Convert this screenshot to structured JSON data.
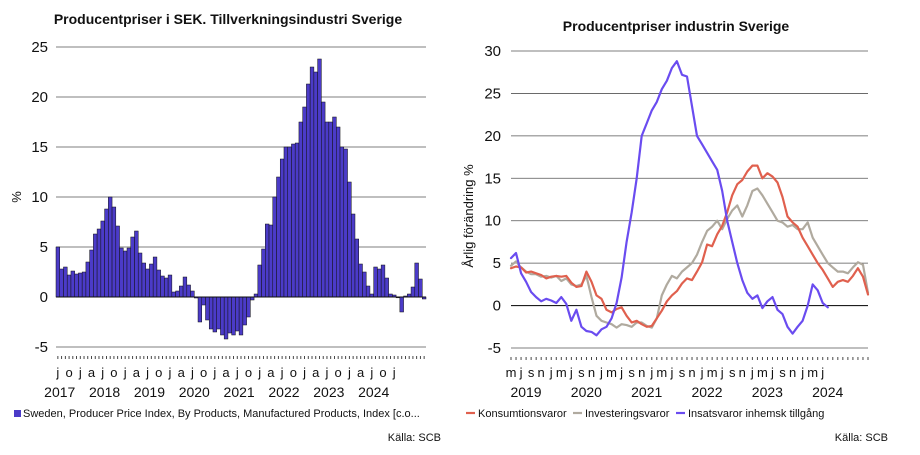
{
  "colors": {
    "bar": "#4B3BC8",
    "bar_outline": "#111111",
    "konsumtion": "#E0604E",
    "investering": "#B0AA9F",
    "insats": "#6A4CF0",
    "grid": "#555555"
  },
  "chart_data": [
    {
      "type": "bar",
      "title": "Producentpriser i SEK. Tillverkningsindustri Sverige",
      "ylabel": "%",
      "ylim": [
        -6,
        25
      ],
      "yticks": [
        25,
        20,
        15,
        10,
        5,
        0,
        -5
      ],
      "grid": true,
      "x_start": "2017-01",
      "x_end": "2024-07",
      "month_labels": [
        "j",
        "o",
        "j",
        "a",
        "j",
        "o",
        "j",
        "a",
        "j",
        "o",
        "j",
        "a",
        "j",
        "o",
        "j",
        "a",
        "j",
        "o",
        "j",
        "a",
        "j",
        "o",
        "j",
        "a",
        "j",
        "o",
        "j",
        "a",
        "j",
        "o",
        "j"
      ],
      "year_labels": [
        "2017",
        "2018",
        "2019",
        "2020",
        "2021",
        "2022",
        "2023",
        "2024"
      ],
      "series": [
        {
          "name": "Sweden, Producer Price Index, By Products, Manufactured Products, Index [c.o...",
          "values": [
            5.0,
            2.8,
            3.0,
            2.2,
            2.6,
            2.3,
            2.4,
            2.5,
            3.5,
            4.7,
            6.3,
            6.8,
            7.6,
            8.8,
            10.0,
            9.0,
            7.1,
            4.9,
            4.6,
            4.9,
            6.0,
            6.6,
            4.4,
            3.4,
            2.8,
            3.3,
            4.0,
            2.7,
            2.1,
            1.9,
            2.2,
            0.5,
            0.6,
            1.1,
            2.0,
            1.2,
            0.6,
            -0.1,
            -2.5,
            -0.8,
            -2.3,
            -3.2,
            -3.5,
            -3.2,
            -3.8,
            -4.2,
            -3.6,
            -3.8,
            -3.4,
            -3.8,
            -2.8,
            -2.0,
            -0.3,
            0.3,
            3.2,
            4.8,
            7.3,
            7.2,
            10.0,
            12.0,
            13.8,
            15.0,
            15.0,
            15.3,
            15.4,
            17.5,
            19.0,
            21.3,
            23.0,
            22.5,
            23.8,
            19.5,
            17.5,
            17.5,
            18.0,
            17.0,
            15.0,
            14.8,
            11.5,
            8.3,
            5.8,
            3.3,
            2.5,
            1.1,
            0.3,
            3.0,
            2.8,
            3.2,
            1.9,
            0.3,
            0.2,
            0.0,
            -1.5,
            0.1,
            0.3,
            1.0,
            3.4,
            1.8,
            -0.2
          ]
        }
      ]
    },
    {
      "type": "line",
      "title": "Producentpriser industrin Sverige",
      "ylabel": "Årlig förändring %",
      "ylim": [
        -5,
        30
      ],
      "yticks": [
        30,
        25,
        20,
        15,
        10,
        5,
        0,
        -5
      ],
      "grid": true,
      "legend_position": "bottom",
      "x_start": "2019-05",
      "x_end": "2024-07",
      "month_labels": [
        "m",
        "j",
        "s",
        "n",
        "j",
        "m",
        "j",
        "s",
        "n",
        "j",
        "m",
        "j",
        "s",
        "n",
        "j",
        "m",
        "j",
        "s",
        "n",
        "j",
        "m",
        "j",
        "s",
        "n",
        "j",
        "m",
        "j",
        "s",
        "n",
        "j",
        "m",
        "j"
      ],
      "year_labels": [
        "2019",
        "2020",
        "2021",
        "2022",
        "2023",
        "2024"
      ],
      "series": [
        {
          "name": "Konsumtionsvaror",
          "values": [
            4.4,
            4.6,
            4.5,
            3.9,
            4.0,
            3.8,
            3.6,
            3.2,
            3.4,
            3.5,
            3.4,
            3.5,
            2.7,
            2.2,
            2.3,
            4.0,
            2.8,
            1.2,
            0.8,
            -0.5,
            -0.8,
            -0.4,
            -0.2,
            -1.2,
            -2.0,
            -1.8,
            -2.2,
            -2.5,
            -2.4,
            -1.5,
            -0.6,
            0.5,
            1.2,
            1.7,
            2.6,
            3.2,
            3.0,
            4.0,
            5.1,
            7.2,
            7.0,
            8.4,
            9.4,
            11.0,
            13.0,
            14.3,
            14.8,
            15.8,
            16.5,
            16.5,
            15.0,
            15.6,
            15.2,
            14.5,
            12.8,
            10.5,
            9.8,
            9.3,
            8.0,
            7.0,
            6.0,
            5.0,
            4.2,
            3.2,
            2.2,
            2.8,
            3.0,
            2.8,
            3.5,
            4.4,
            3.4,
            1.3
          ]
        },
        {
          "name": "Investeringsvaror",
          "values": [
            4.7,
            5.2,
            4.5,
            4.0,
            3.7,
            3.7,
            3.4,
            3.5,
            3.3,
            3.5,
            2.9,
            3.2,
            2.5,
            2.3,
            2.5,
            3.5,
            1.0,
            -1.2,
            -1.8,
            -2.0,
            -2.2,
            -2.6,
            -2.2,
            -2.3,
            -2.5,
            -2.0,
            -2.0,
            -2.4,
            -2.6,
            -1.5,
            1.2,
            2.5,
            3.5,
            3.2,
            4.0,
            4.5,
            5.0,
            6.0,
            7.5,
            8.8,
            9.3,
            10.0,
            9.0,
            10.2,
            11.2,
            11.8,
            10.5,
            11.8,
            13.5,
            13.8,
            13.0,
            12.0,
            11.0,
            10.0,
            9.8,
            9.3,
            9.5,
            9.0,
            9.0,
            9.8,
            8.0,
            7.0,
            6.0,
            5.0,
            4.5,
            4.0,
            4.0,
            3.8,
            4.5,
            5.1,
            4.8,
            1.5
          ]
        },
        {
          "name": "Insatsvaror inhemsk tillgång",
          "values": [
            5.6,
            6.2,
            3.8,
            2.8,
            1.6,
            1.0,
            0.5,
            0.8,
            0.6,
            0.3,
            1.0,
            0.2,
            -1.8,
            -0.5,
            -2.5,
            -3.0,
            -3.1,
            -3.5,
            -2.8,
            -2.5,
            -1.5,
            0.3,
            3.3,
            7.5,
            11.0,
            15.0,
            20.0,
            21.5,
            23.0,
            24.0,
            25.5,
            26.5,
            28.0,
            28.8,
            27.2,
            27.0,
            23.5,
            20.0,
            19.0,
            18.0,
            17.0,
            16.0,
            13.5,
            10.0,
            7.5,
            5.0,
            3.0,
            1.5,
            0.8,
            1.2,
            -0.3,
            0.5,
            1.0,
            -0.5,
            -1.0,
            -2.5,
            -3.3,
            -2.5,
            -1.8,
            0.0,
            2.5,
            1.8,
            0.3,
            -0.2
          ]
        }
      ]
    }
  ],
  "source_left": "Källa: SCB",
  "source_right": "Källa: SCB"
}
